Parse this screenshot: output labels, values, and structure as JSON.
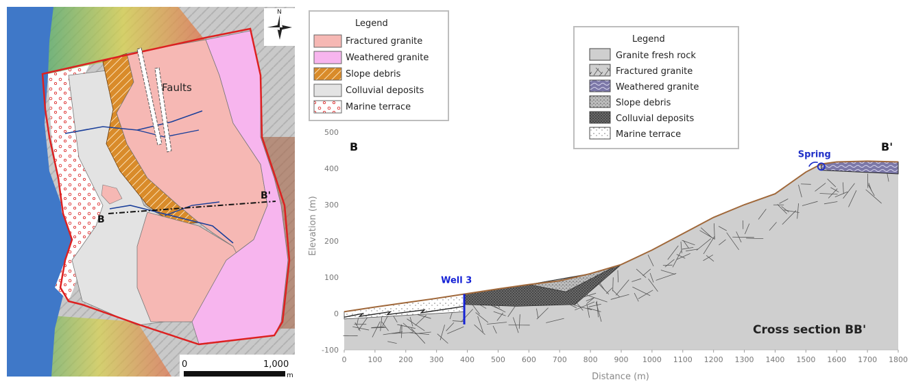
{
  "map": {
    "north_label": "N",
    "point_b": "B",
    "point_b_prime": "B'",
    "faults_label": "Faults",
    "scale_start": "0",
    "scale_end": "1,000",
    "scale_unit": "m",
    "colors": {
      "sea": "#3f78c8",
      "boundary": "#dd2020",
      "fractured_granite": "#f6b8b4",
      "weathered_granite": "#f7b5ee",
      "slope_debris": "#d98b2a",
      "colluvial_deposits": "#e3e3e3",
      "river": "#1a3f9a"
    }
  },
  "map_legend": {
    "title": "Legend",
    "items": [
      {
        "label": "Fractured granite",
        "pattern": "solid",
        "color": "#f6b8b4"
      },
      {
        "label": "Weathered granite",
        "pattern": "solid",
        "color": "#f7b5ee"
      },
      {
        "label": "Slope debris",
        "pattern": "hatch",
        "color": "#d98b2a"
      },
      {
        "label": "Colluvial deposits",
        "pattern": "solid",
        "color": "#e3e3e3"
      },
      {
        "label": "Marine terrace",
        "pattern": "dots",
        "color": "#dd3030"
      }
    ]
  },
  "section_legend": {
    "title": "Legend",
    "items": [
      {
        "label": "Granite fresh rock",
        "pattern": "solid-gray"
      },
      {
        "label": "Fractured granite",
        "pattern": "cracks"
      },
      {
        "label": "Weathered granite",
        "pattern": "wavy-blue"
      },
      {
        "label": "Slope debris",
        "pattern": "stipple-gray"
      },
      {
        "label": "Colluvial deposits",
        "pattern": "stipple-dark"
      },
      {
        "label": "Marine terrace",
        "pattern": "sparse-dots"
      }
    ]
  },
  "section": {
    "title": "Cross section BB'",
    "label_b": "B",
    "label_b_prime": "B'",
    "well_label": "Well 3",
    "spring_label": "Spring",
    "colors": {
      "well": "#1522d6",
      "spring": "#2030c8",
      "surface": "#a0683a",
      "rock": "#cfcfcf"
    }
  },
  "chart_data": {
    "type": "area",
    "xlabel": "Distance (m)",
    "ylabel": "Elevation (m)",
    "xlim": [
      0,
      1800
    ],
    "ylim": [
      -100,
      500
    ],
    "xticks": [
      0,
      100,
      200,
      300,
      400,
      500,
      600,
      700,
      800,
      900,
      1000,
      1100,
      1200,
      1300,
      1400,
      1500,
      1600,
      1700,
      1800
    ],
    "yticks": [
      -100,
      0,
      100,
      200,
      300,
      400,
      500
    ],
    "series": [
      {
        "x": [
          0,
          100,
          200,
          300,
          400,
          500,
          600,
          700,
          800,
          900,
          1000,
          1100,
          1200,
          1300,
          1400,
          1500,
          1550,
          1600,
          1700,
          1800
        ],
        "y": [
          5,
          18,
          30,
          42,
          55,
          68,
          80,
          90,
          110,
          135,
          175,
          220,
          265,
          300,
          330,
          390,
          412,
          418,
          420,
          418
        ]
      }
    ],
    "well_x": 390,
    "well_depth": -30,
    "spring_x": 1550,
    "spring_y": 405
  }
}
